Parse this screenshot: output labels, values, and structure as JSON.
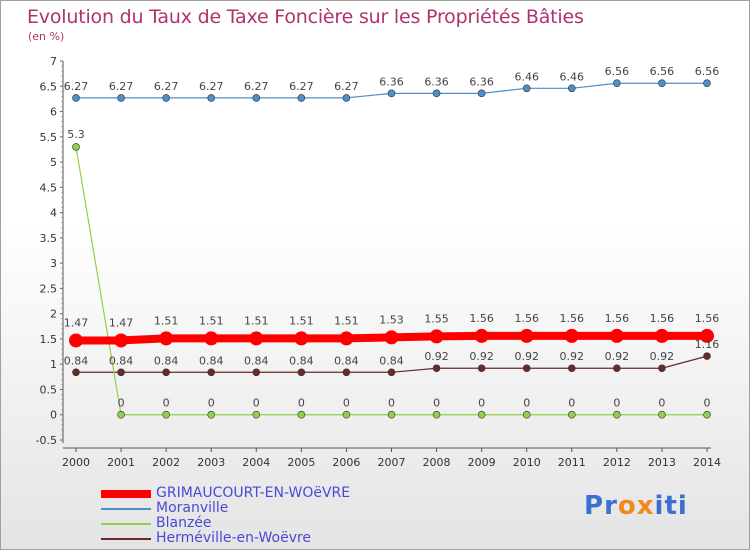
{
  "header": {
    "title": "Evolution du Taux de Taxe Foncière sur les Propriétés Bâties",
    "unit": "(en %)"
  },
  "logo": {
    "letters": [
      "P",
      "r",
      "o",
      "x",
      "i",
      "t",
      "i"
    ],
    "colors": [
      "#3b6fd1",
      "#3b6fd1",
      "#f08a1c",
      "#f08a1c",
      "#3b6fd1",
      "#3b6fd1",
      "#3b6fd1"
    ]
  },
  "chart_data": {
    "type": "line",
    "title": "Evolution du Taux de Taxe Foncière sur les Propriétés Bâties",
    "ylabel": "(en %)",
    "xlabel": "",
    "x": [
      "2000",
      "2001",
      "2002",
      "2003",
      "2004",
      "2005",
      "2006",
      "2007",
      "2008",
      "2009",
      "2010",
      "2011",
      "2012",
      "2013",
      "2014"
    ],
    "ylim": [
      -0.5,
      7
    ],
    "yticks": [
      "-0.5",
      "0",
      "0.5",
      "1",
      "1.5",
      "2",
      "2.5",
      "3",
      "3.5",
      "4",
      "4.5",
      "5",
      "5.5",
      "6",
      "6.5",
      "7"
    ],
    "grid": false,
    "legend_position": "bottom-left",
    "series": [
      {
        "name": "GRIMAUCOURT-EN-WOëVRE",
        "color": "#ff0000",
        "width": 8,
        "marker": 7,
        "values": [
          1.47,
          1.47,
          1.51,
          1.51,
          1.51,
          1.51,
          1.51,
          1.53,
          1.55,
          1.56,
          1.56,
          1.56,
          1.56,
          1.56,
          1.56
        ],
        "labels": [
          "1.47",
          "1.47",
          "1.51",
          "1.51",
          "1.51",
          "1.51",
          "1.51",
          "1.53",
          "1.55",
          "1.56",
          "1.56",
          "1.56",
          "1.56",
          "1.56",
          "1.56"
        ]
      },
      {
        "name": "Moranville",
        "color": "#4d8fcb",
        "width": 1.2,
        "marker": 3.5,
        "values": [
          6.27,
          6.27,
          6.27,
          6.27,
          6.27,
          6.27,
          6.27,
          6.36,
          6.36,
          6.36,
          6.46,
          6.46,
          6.56,
          6.56,
          6.56
        ],
        "labels": [
          "6.27",
          "6.27",
          "6.27",
          "6.27",
          "6.27",
          "6.27",
          "6.27",
          "6.36",
          "6.36",
          "6.36",
          "6.46",
          "6.46",
          "6.56",
          "6.56",
          "6.56"
        ]
      },
      {
        "name": "Blanzée",
        "color": "#8fd14f",
        "width": 1.2,
        "marker": 3.5,
        "values": [
          5.3,
          0,
          0,
          0,
          0,
          0,
          0,
          0,
          0,
          0,
          0,
          0,
          0,
          0,
          0
        ],
        "labels": [
          "5.3",
          "0",
          "0",
          "0",
          "0",
          "0",
          "0",
          "0",
          "0",
          "0",
          "0",
          "0",
          "0",
          "0",
          "0"
        ]
      },
      {
        "name": "Herméville-en-Woëvre",
        "color": "#6b2a2a",
        "width": 1.2,
        "marker": 3.5,
        "values": [
          0.84,
          0.84,
          0.84,
          0.84,
          0.84,
          0.84,
          0.84,
          0.84,
          0.92,
          0.92,
          0.92,
          0.92,
          0.92,
          0.92,
          1.16
        ],
        "labels": [
          "0.84",
          "0.84",
          "0.84",
          "0.84",
          "0.84",
          "0.84",
          "0.84",
          "0.84",
          "0.92",
          "0.92",
          "0.92",
          "0.92",
          "0.92",
          "0.92",
          "1.16"
        ]
      }
    ]
  }
}
